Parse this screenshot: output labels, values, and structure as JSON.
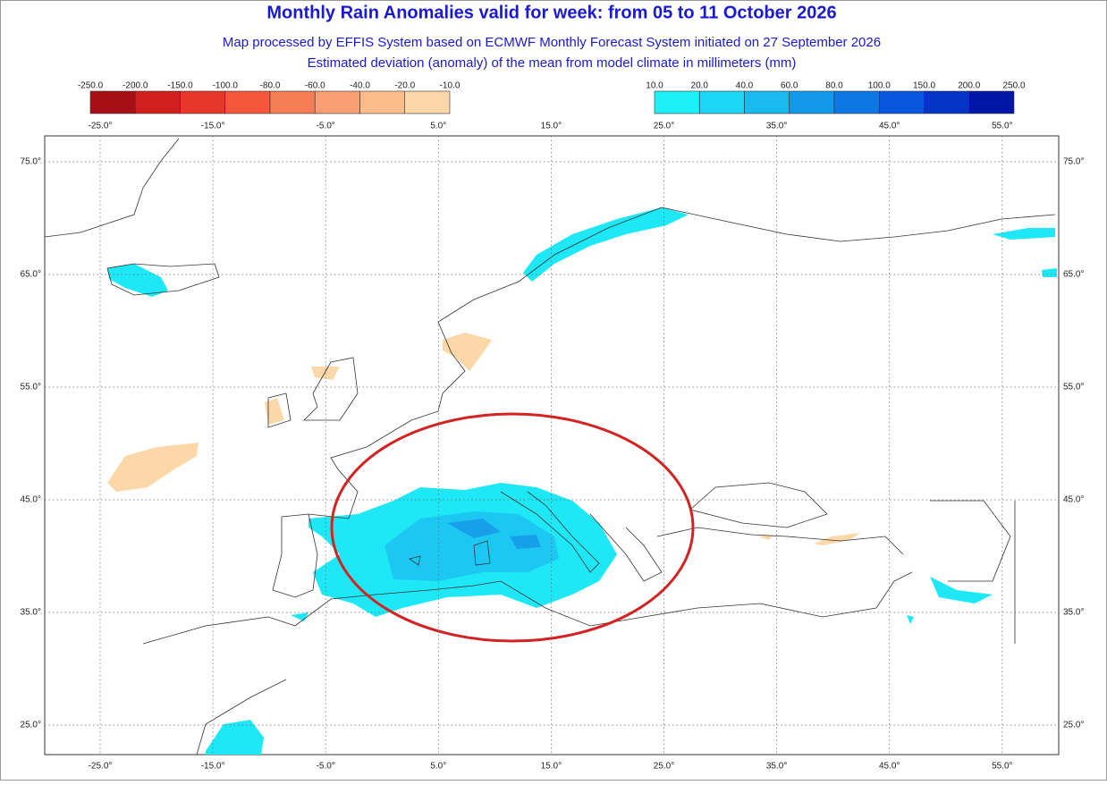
{
  "header": {
    "title": "Monthly Rain Anomalies valid for week: from 05 to 11 October 2026",
    "subtitle": "Map processed by EFFIS System based on ECMWF Monthly Forecast System initiated on 27 September 2026",
    "description": "Estimated deviation (anomaly) of the mean from model climate in millimeters (mm)"
  },
  "legend": {
    "negative": {
      "labels": [
        "-250.0",
        "-200.0",
        "-150.0",
        "-100.0",
        "-80.0",
        "-60.0",
        "-40.0",
        "-20.0",
        "-10.0"
      ],
      "colors": [
        "#a50f15",
        "#d01f1c",
        "#e8362a",
        "#f4573b",
        "#f77d56",
        "#f99e72",
        "#fbbd8c",
        "#fcd8a8"
      ]
    },
    "positive": {
      "labels": [
        "10.0",
        "20.0",
        "40.0",
        "60.0",
        "80.0",
        "100.0",
        "150.0",
        "200.0",
        "250.0"
      ],
      "colors": [
        "#1ef0f8",
        "#1cd6f5",
        "#18baf0",
        "#1398ea",
        "#0d78e4",
        "#0856de",
        "#0433c8",
        "#0016a6"
      ]
    }
  },
  "map": {
    "lon_labels": [
      "-25.0°",
      "-15.0°",
      "-5.0°",
      "5.0°",
      "15.0°",
      "25.0°",
      "35.0°",
      "45.0°",
      "55.0°"
    ],
    "lat_labels": [
      "75.0°",
      "65.0°",
      "55.0°",
      "45.0°",
      "35.0°",
      "25.0°"
    ]
  }
}
